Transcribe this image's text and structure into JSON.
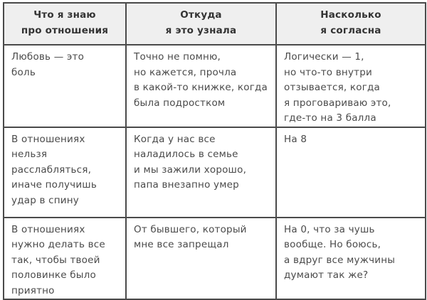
{
  "table": {
    "headers": [
      "Что я знаю\nпро отношения",
      "Откуда\nя это узнала",
      "Насколько\nя согласна"
    ],
    "rows": [
      [
        "Любовь — это\nболь",
        "Точно не помню,\nно кажется, прочла\nв какой-то книжке, когда\nбыла подростком",
        "Логически — 1,\nно что-то внутри\nотзывается, когда\nя проговариваю это,\nгде-то на 3 балла"
      ],
      [
        "В отношениях\nнельзя\nрасслабляться,\nиначе получишь\nудар в спину",
        "Когда у нас все\nналадилось в семье\nи мы зажили хорошо,\nпапа внезапно умер",
        "На 8"
      ],
      [
        "В отношениях\nнужно делать все\nтак, чтобы твоей\nполовинке было\nприятно",
        "От бывшего, который\nмне все запрещал",
        "На 0, что за чушь\nвообще. Но боюсь,\nа вдруг все мужчины\nдумают так же?"
      ]
    ]
  }
}
